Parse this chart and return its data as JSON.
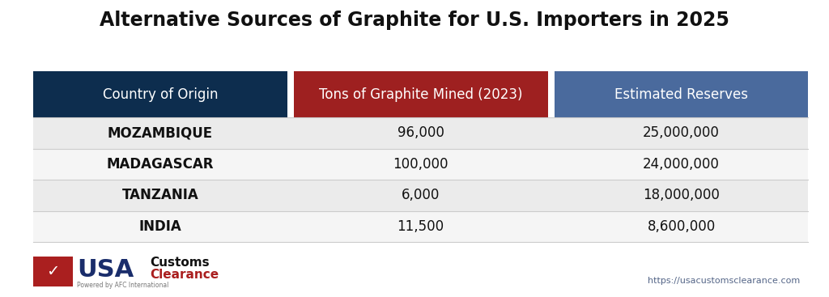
{
  "title": "Alternative Sources of Graphite for U.S. Importers in 2025",
  "title_fontsize": 17,
  "title_fontweight": "bold",
  "col_headers": [
    "Country of Origin",
    "Tons of Graphite Mined (2023)",
    "Estimated Reserves"
  ],
  "col_header_colors": [
    "#0d2d4e",
    "#9e2020",
    "#4a6a9d"
  ],
  "col_header_text_color": "#ffffff",
  "col_header_fontsize": 12,
  "rows": [
    [
      "MOZAMBIQUE",
      "96,000",
      "25,000,000"
    ],
    [
      "MADAGASCAR",
      "100,000",
      "24,000,000"
    ],
    [
      "TANZANIA",
      "6,000",
      "18,000,000"
    ],
    [
      "INDIA",
      "11,500",
      "8,600,000"
    ]
  ],
  "row_bg_colors": [
    "#ebebeb",
    "#f5f5f5",
    "#ebebeb",
    "#f5f5f5"
  ],
  "row_text_color": "#111111",
  "row_fontsize": 12,
  "background_color": "#ffffff",
  "url_text": "https://usacustomsclearance.com",
  "url_color": "#556688"
}
